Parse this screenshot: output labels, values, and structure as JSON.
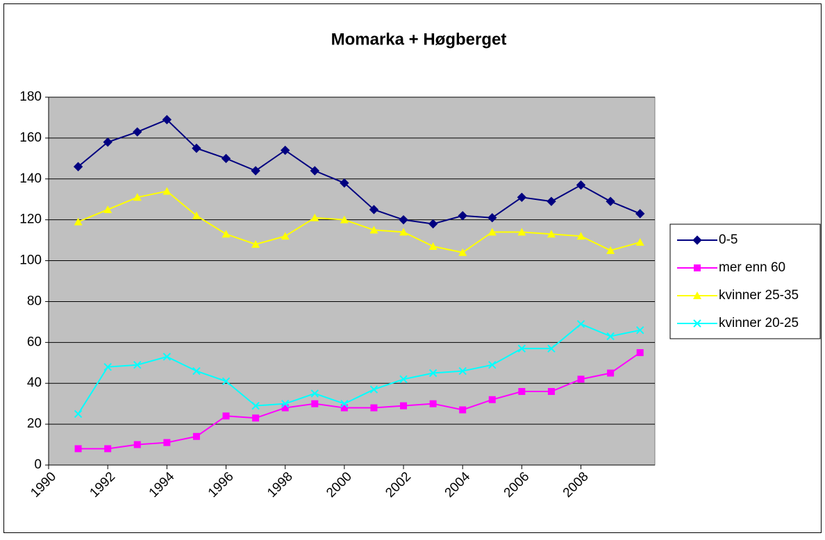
{
  "chart_data": {
    "type": "line",
    "title": "Momarka + Høgberget",
    "x": [
      1991,
      1992,
      1993,
      1994,
      1995,
      1996,
      1997,
      1998,
      1999,
      2000,
      2001,
      2002,
      2003,
      2004,
      2005,
      2006,
      2007,
      2008,
      2009,
      2010
    ],
    "xlim": [
      1990,
      2010.5
    ],
    "xticks": [
      1990,
      1992,
      1994,
      1996,
      1998,
      2000,
      2002,
      2004,
      2006,
      2008
    ],
    "ylim": [
      0,
      180
    ],
    "yticks": [
      0,
      20,
      40,
      60,
      80,
      100,
      120,
      140,
      160,
      180
    ],
    "grid": true,
    "legend": "right",
    "series": [
      {
        "name": "0-5",
        "color": "#000080",
        "marker": "diamond",
        "values": [
          146,
          158,
          163,
          169,
          155,
          150,
          144,
          154,
          144,
          138,
          125,
          120,
          118,
          122,
          121,
          131,
          129,
          137,
          129,
          123
        ]
      },
      {
        "name": "mer enn 60",
        "color": "#ff00ff",
        "marker": "square",
        "values": [
          8,
          8,
          10,
          11,
          14,
          24,
          23,
          28,
          30,
          28,
          28,
          29,
          30,
          27,
          32,
          36,
          36,
          42,
          45,
          55
        ]
      },
      {
        "name": "kvinner 25-35",
        "color": "#ffff00",
        "marker": "triangle",
        "values": [
          119,
          125,
          131,
          134,
          122,
          113,
          108,
          112,
          121,
          120,
          115,
          114,
          107,
          104,
          114,
          114,
          113,
          112,
          105,
          109
        ]
      },
      {
        "name": "kvinner 20-25",
        "color": "#00ffff",
        "marker": "x",
        "values": [
          25,
          48,
          49,
          53,
          46,
          41,
          29,
          30,
          35,
          30,
          37,
          42,
          45,
          46,
          49,
          57,
          57,
          69,
          63,
          66
        ]
      }
    ]
  }
}
